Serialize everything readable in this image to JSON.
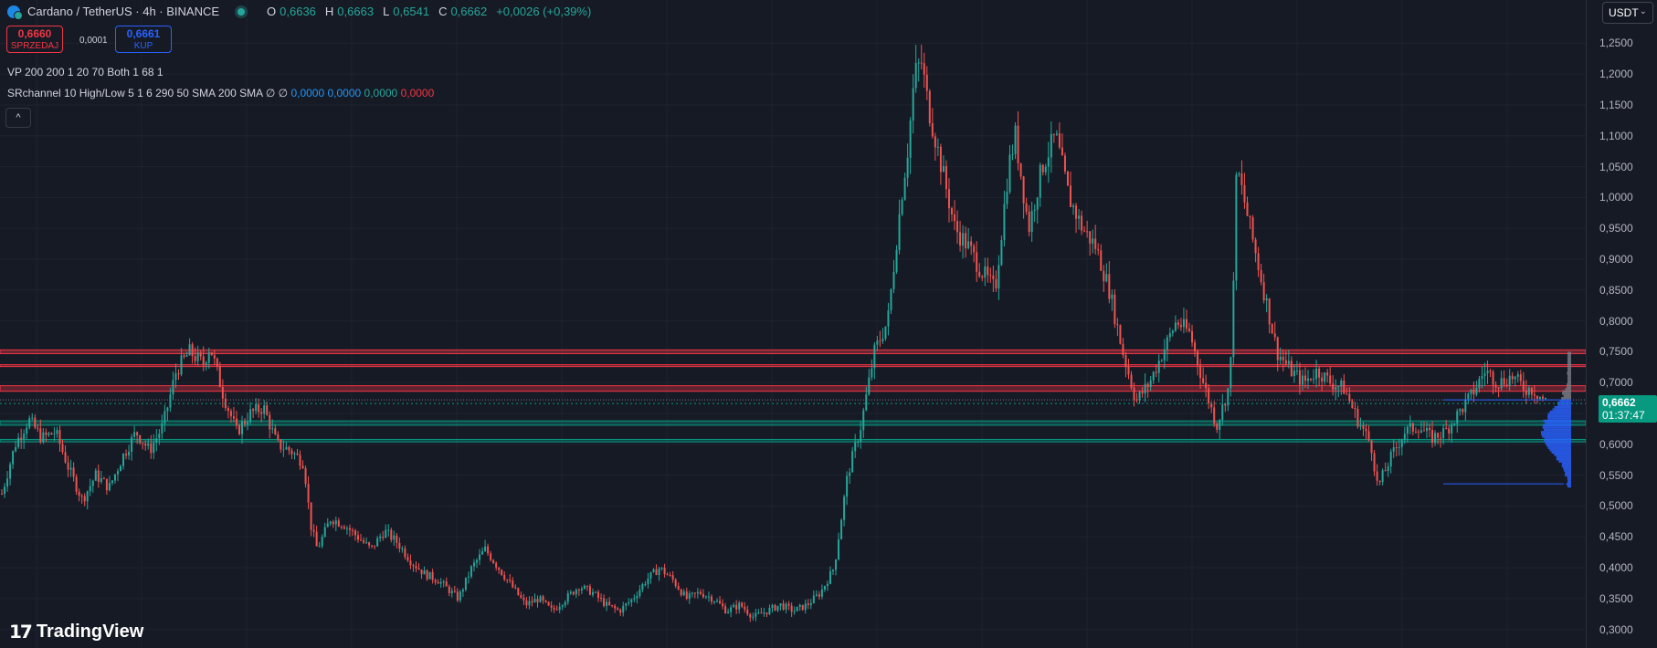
{
  "header": {
    "symbol": "Cardano / TetherUS · 4h · BINANCE",
    "ohlc": {
      "o_label": "O",
      "o": "0,6636",
      "h_label": "H",
      "h": "0,6663",
      "l_label": "L",
      "l": "0,6541",
      "c_label": "C",
      "c": "0,6662",
      "change": "+0,0026 (+0,39%)"
    }
  },
  "trade": {
    "sell_price": "0,6660",
    "sell_label": "SPRZEDAJ",
    "spread": "0,0001",
    "buy_price": "0,6661",
    "buy_label": "KUP"
  },
  "indicators": {
    "vp": "VP 200 200 1 20 70 Both 1 68 1",
    "sr_prefix": "SRchannel 10 High/Low 5 1 6 290 50 SMA 200 SMA  ∅  ∅",
    "sr_v1": "0,0000",
    "sr_v2": "0,0000",
    "sr_v3": "0,0000",
    "sr_v4": "0,0000",
    "collapse_icon": "^"
  },
  "price_scale": {
    "currency": "USDT",
    "current_price": "0,6662",
    "countdown": "01:37:47"
  },
  "watermark": "TradingView",
  "colors": {
    "up": "#26a69a",
    "down": "#ef5350",
    "background": "#161a25",
    "resistance": "#f23645",
    "support": "#089981",
    "volume_profile": "#2962ff"
  },
  "chart_data": {
    "type": "candlestick",
    "timeframe": "4h",
    "ylim": [
      0.27,
      1.32
    ],
    "yticks": [
      "1,2500",
      "1,2000",
      "1,1500",
      "1,1000",
      "1,0500",
      "1,0000",
      "0,9500",
      "0,9000",
      "0,8500",
      "0,8000",
      "0,7500",
      "0,7000",
      "0,6500",
      "0,6000",
      "0,5500",
      "0,5000",
      "0,4500",
      "0,4000",
      "0,3500",
      "0,3000"
    ],
    "ytick_values": [
      1.25,
      1.2,
      1.15,
      1.1,
      1.05,
      1.0,
      0.95,
      0.9,
      0.85,
      0.8,
      0.75,
      0.7,
      0.65,
      0.6,
      0.55,
      0.5,
      0.45,
      0.4,
      0.35,
      0.3
    ],
    "close_path": [
      [
        0,
        0.52
      ],
      [
        2,
        0.6
      ],
      [
        4,
        0.64
      ],
      [
        6,
        0.61
      ],
      [
        8,
        0.62
      ],
      [
        10,
        0.56
      ],
      [
        12,
        0.51
      ],
      [
        14,
        0.55
      ],
      [
        16,
        0.53
      ],
      [
        18,
        0.58
      ],
      [
        20,
        0.62
      ],
      [
        22,
        0.59
      ],
      [
        24,
        0.63
      ],
      [
        26,
        0.72
      ],
      [
        28,
        0.75
      ],
      [
        30,
        0.73
      ],
      [
        31,
        0.76
      ],
      [
        33,
        0.68
      ],
      [
        35,
        0.62
      ],
      [
        37,
        0.65
      ],
      [
        39,
        0.66
      ],
      [
        41,
        0.6
      ],
      [
        43,
        0.59
      ],
      [
        45,
        0.57
      ],
      [
        46,
        0.47
      ],
      [
        47,
        0.43
      ],
      [
        49,
        0.48
      ],
      [
        51,
        0.47
      ],
      [
        53,
        0.45
      ],
      [
        55,
        0.43
      ],
      [
        57,
        0.46
      ],
      [
        59,
        0.44
      ],
      [
        61,
        0.41
      ],
      [
        63,
        0.39
      ],
      [
        65,
        0.38
      ],
      [
        66,
        0.37
      ],
      [
        68,
        0.35
      ],
      [
        70,
        0.4
      ],
      [
        72,
        0.43
      ],
      [
        74,
        0.4
      ],
      [
        76,
        0.37
      ],
      [
        78,
        0.34
      ],
      [
        80,
        0.35
      ],
      [
        82,
        0.33
      ],
      [
        84,
        0.35
      ],
      [
        86,
        0.37
      ],
      [
        88,
        0.36
      ],
      [
        90,
        0.34
      ],
      [
        92,
        0.33
      ],
      [
        94,
        0.35
      ],
      [
        96,
        0.38
      ],
      [
        98,
        0.4
      ],
      [
        100,
        0.38
      ],
      [
        102,
        0.35
      ],
      [
        104,
        0.36
      ],
      [
        106,
        0.35
      ],
      [
        108,
        0.33
      ],
      [
        110,
        0.34
      ],
      [
        112,
        0.32
      ],
      [
        114,
        0.33
      ],
      [
        116,
        0.34
      ],
      [
        118,
        0.33
      ],
      [
        120,
        0.34
      ],
      [
        122,
        0.36
      ],
      [
        124,
        0.4
      ],
      [
        126,
        0.55
      ],
      [
        128,
        0.63
      ],
      [
        130,
        0.75
      ],
      [
        132,
        0.8
      ],
      [
        134,
        1.0
      ],
      [
        135,
        1.08
      ],
      [
        136,
        1.2
      ],
      [
        137,
        1.22
      ],
      [
        138,
        1.15
      ],
      [
        140,
        1.05
      ],
      [
        142,
        0.95
      ],
      [
        144,
        0.92
      ],
      [
        146,
        0.88
      ],
      [
        148,
        0.85
      ],
      [
        150,
        1.05
      ],
      [
        151,
        1.1
      ],
      [
        153,
        0.95
      ],
      [
        155,
        1.05
      ],
      [
        157,
        1.1
      ],
      [
        159,
        1.0
      ],
      [
        161,
        0.95
      ],
      [
        163,
        0.92
      ],
      [
        165,
        0.85
      ],
      [
        167,
        0.75
      ],
      [
        169,
        0.67
      ],
      [
        171,
        0.7
      ],
      [
        173,
        0.75
      ],
      [
        175,
        0.8
      ],
      [
        177,
        0.78
      ],
      [
        179,
        0.7
      ],
      [
        181,
        0.63
      ],
      [
        183,
        0.7
      ],
      [
        184,
        1.05
      ],
      [
        186,
        0.95
      ],
      [
        188,
        0.85
      ],
      [
        190,
        0.75
      ],
      [
        192,
        0.72
      ],
      [
        194,
        0.7
      ],
      [
        196,
        0.72
      ],
      [
        198,
        0.7
      ],
      [
        200,
        0.69
      ],
      [
        202,
        0.64
      ],
      [
        204,
        0.6
      ],
      [
        205,
        0.53
      ],
      [
        207,
        0.58
      ],
      [
        209,
        0.62
      ],
      [
        211,
        0.63
      ],
      [
        213,
        0.61
      ],
      [
        215,
        0.62
      ],
      [
        217,
        0.65
      ],
      [
        219,
        0.68
      ],
      [
        221,
        0.72
      ],
      [
        223,
        0.7
      ],
      [
        225,
        0.71
      ],
      [
        227,
        0.69
      ],
      [
        228,
        0.69
      ],
      [
        230,
        0.67
      ]
    ],
    "resistance_zones": [
      [
        0.747,
        0.753
      ],
      [
        0.727,
        0.729
      ],
      [
        0.686,
        0.695
      ]
    ],
    "support_zones": [
      [
        0.631,
        0.638
      ],
      [
        0.604,
        0.608
      ]
    ],
    "dotted_line": 0.672,
    "volume_profile_range": [
      0.53,
      0.75
    ],
    "last_price": 0.6662
  }
}
